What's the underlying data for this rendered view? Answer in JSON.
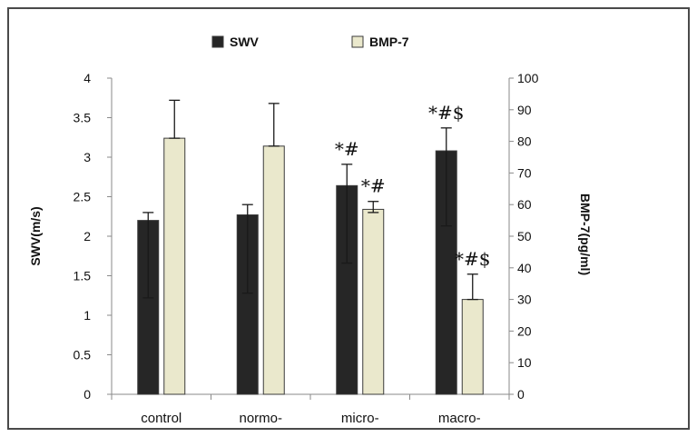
{
  "chart_data": {
    "type": "bar",
    "categories": [
      "control",
      "normo-",
      "micro-",
      "macro-"
    ],
    "series": [
      {
        "name": "SWV",
        "axis": "left",
        "color": "#262626",
        "values": [
          2.2,
          2.27,
          2.64,
          3.08
        ],
        "error_low": [
          1.22,
          1.28,
          1.66,
          2.13
        ],
        "error_high": [
          2.3,
          2.4,
          2.91,
          3.37
        ]
      },
      {
        "name": "BMP-7",
        "axis": "right",
        "color": "#eae8cc",
        "values": [
          81,
          78.5,
          58.5,
          30
        ],
        "error_low": [
          81,
          78.5,
          57.5,
          30
        ],
        "error_high": [
          93,
          92,
          61,
          38
        ]
      }
    ],
    "ylabel": "SWV(m/s)",
    "ylabel_right": "BMP-7(pg/ml)",
    "ylim": [
      0,
      4
    ],
    "ylim_right": [
      0,
      100
    ],
    "yticks": [
      "0",
      "0.5",
      "1",
      "1.5",
      "2",
      "2.5",
      "3",
      "3.5",
      "4"
    ],
    "yticks_right": [
      "0",
      "10",
      "20",
      "30",
      "40",
      "50",
      "60",
      "70",
      "80",
      "90",
      "100"
    ],
    "legend_position": "top-center",
    "grid": false,
    "annotations": [
      {
        "category": "micro-",
        "series": "SWV",
        "text": "*#"
      },
      {
        "category": "micro-",
        "series": "BMP-7",
        "text": "*#"
      },
      {
        "category": "macro-",
        "series": "SWV",
        "text": "*#$"
      },
      {
        "category": "macro-",
        "series": "BMP-7",
        "text": "*#$"
      }
    ]
  }
}
